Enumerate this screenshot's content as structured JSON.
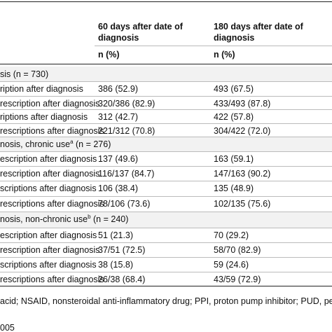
{
  "header": {
    "col1": "60 days after date of diagnosis",
    "col2": "180 days after date of diagnosis",
    "unit1": "n (%)",
    "unit2": "n (%)"
  },
  "rows": [
    {
      "section": "sis (n = 730)"
    },
    {
      "label": "ription after diagnosis",
      "v1": "386 (52.9)",
      "v2": "493 (67.5)"
    },
    {
      "label": "rescription after diagnosis",
      "v1": "320/386 (82.9)",
      "v2": "433/493 (87.8)"
    },
    {
      "label": "riptions after diagnosis",
      "v1": "312 (42.7)",
      "v2": "422 (57.8)"
    },
    {
      "label": "rescriptions after diagnosis",
      "v1": "221/312 (70.8)",
      "v2": "304/422 (72.0)"
    },
    {
      "section": "nosis, chronic use",
      "sup": "a",
      "rest": " (n = 276)"
    },
    {
      "label": "escription after diagnosis",
      "v1": "137 (49.6)",
      "v2": "163 (59.1)"
    },
    {
      "label": "rescription after diagnosis",
      "v1": "116/137 (84.7)",
      "v2": "147/163 (90.2)"
    },
    {
      "label": "scriptions after diagnosis",
      "v1": "106 (38.4)",
      "v2": "135 (48.9)"
    },
    {
      "label": "rescriptions after diagnosis",
      "v1": "78/106 (73.6)",
      "v2": "102/135 (75.6)"
    },
    {
      "section": "nosis, non-chronic use",
      "sup": "b",
      "rest": " (n = 240)"
    },
    {
      "label": "escription after diagnosis",
      "v1": "51 (21.3)",
      "v2": "70 (29.2)"
    },
    {
      "label": "rescription after diagnosis",
      "v1": "37/51 (72.5)",
      "v2": "58/70 (82.9)"
    },
    {
      "label": "scriptions after diagnosis",
      "v1": "38 (15.8)",
      "v2": "59 (24.6)"
    },
    {
      "label": "rescriptions after diagnosis",
      "v1": "26/38 (68.4)",
      "v2": "43/59 (72.9)"
    }
  ],
  "footnote": "acid; NSAID, nonsteroidal anti-inflammatory drug; PPI, proton pump inhibitor; PUD, peptic ulce",
  "footer": "005"
}
